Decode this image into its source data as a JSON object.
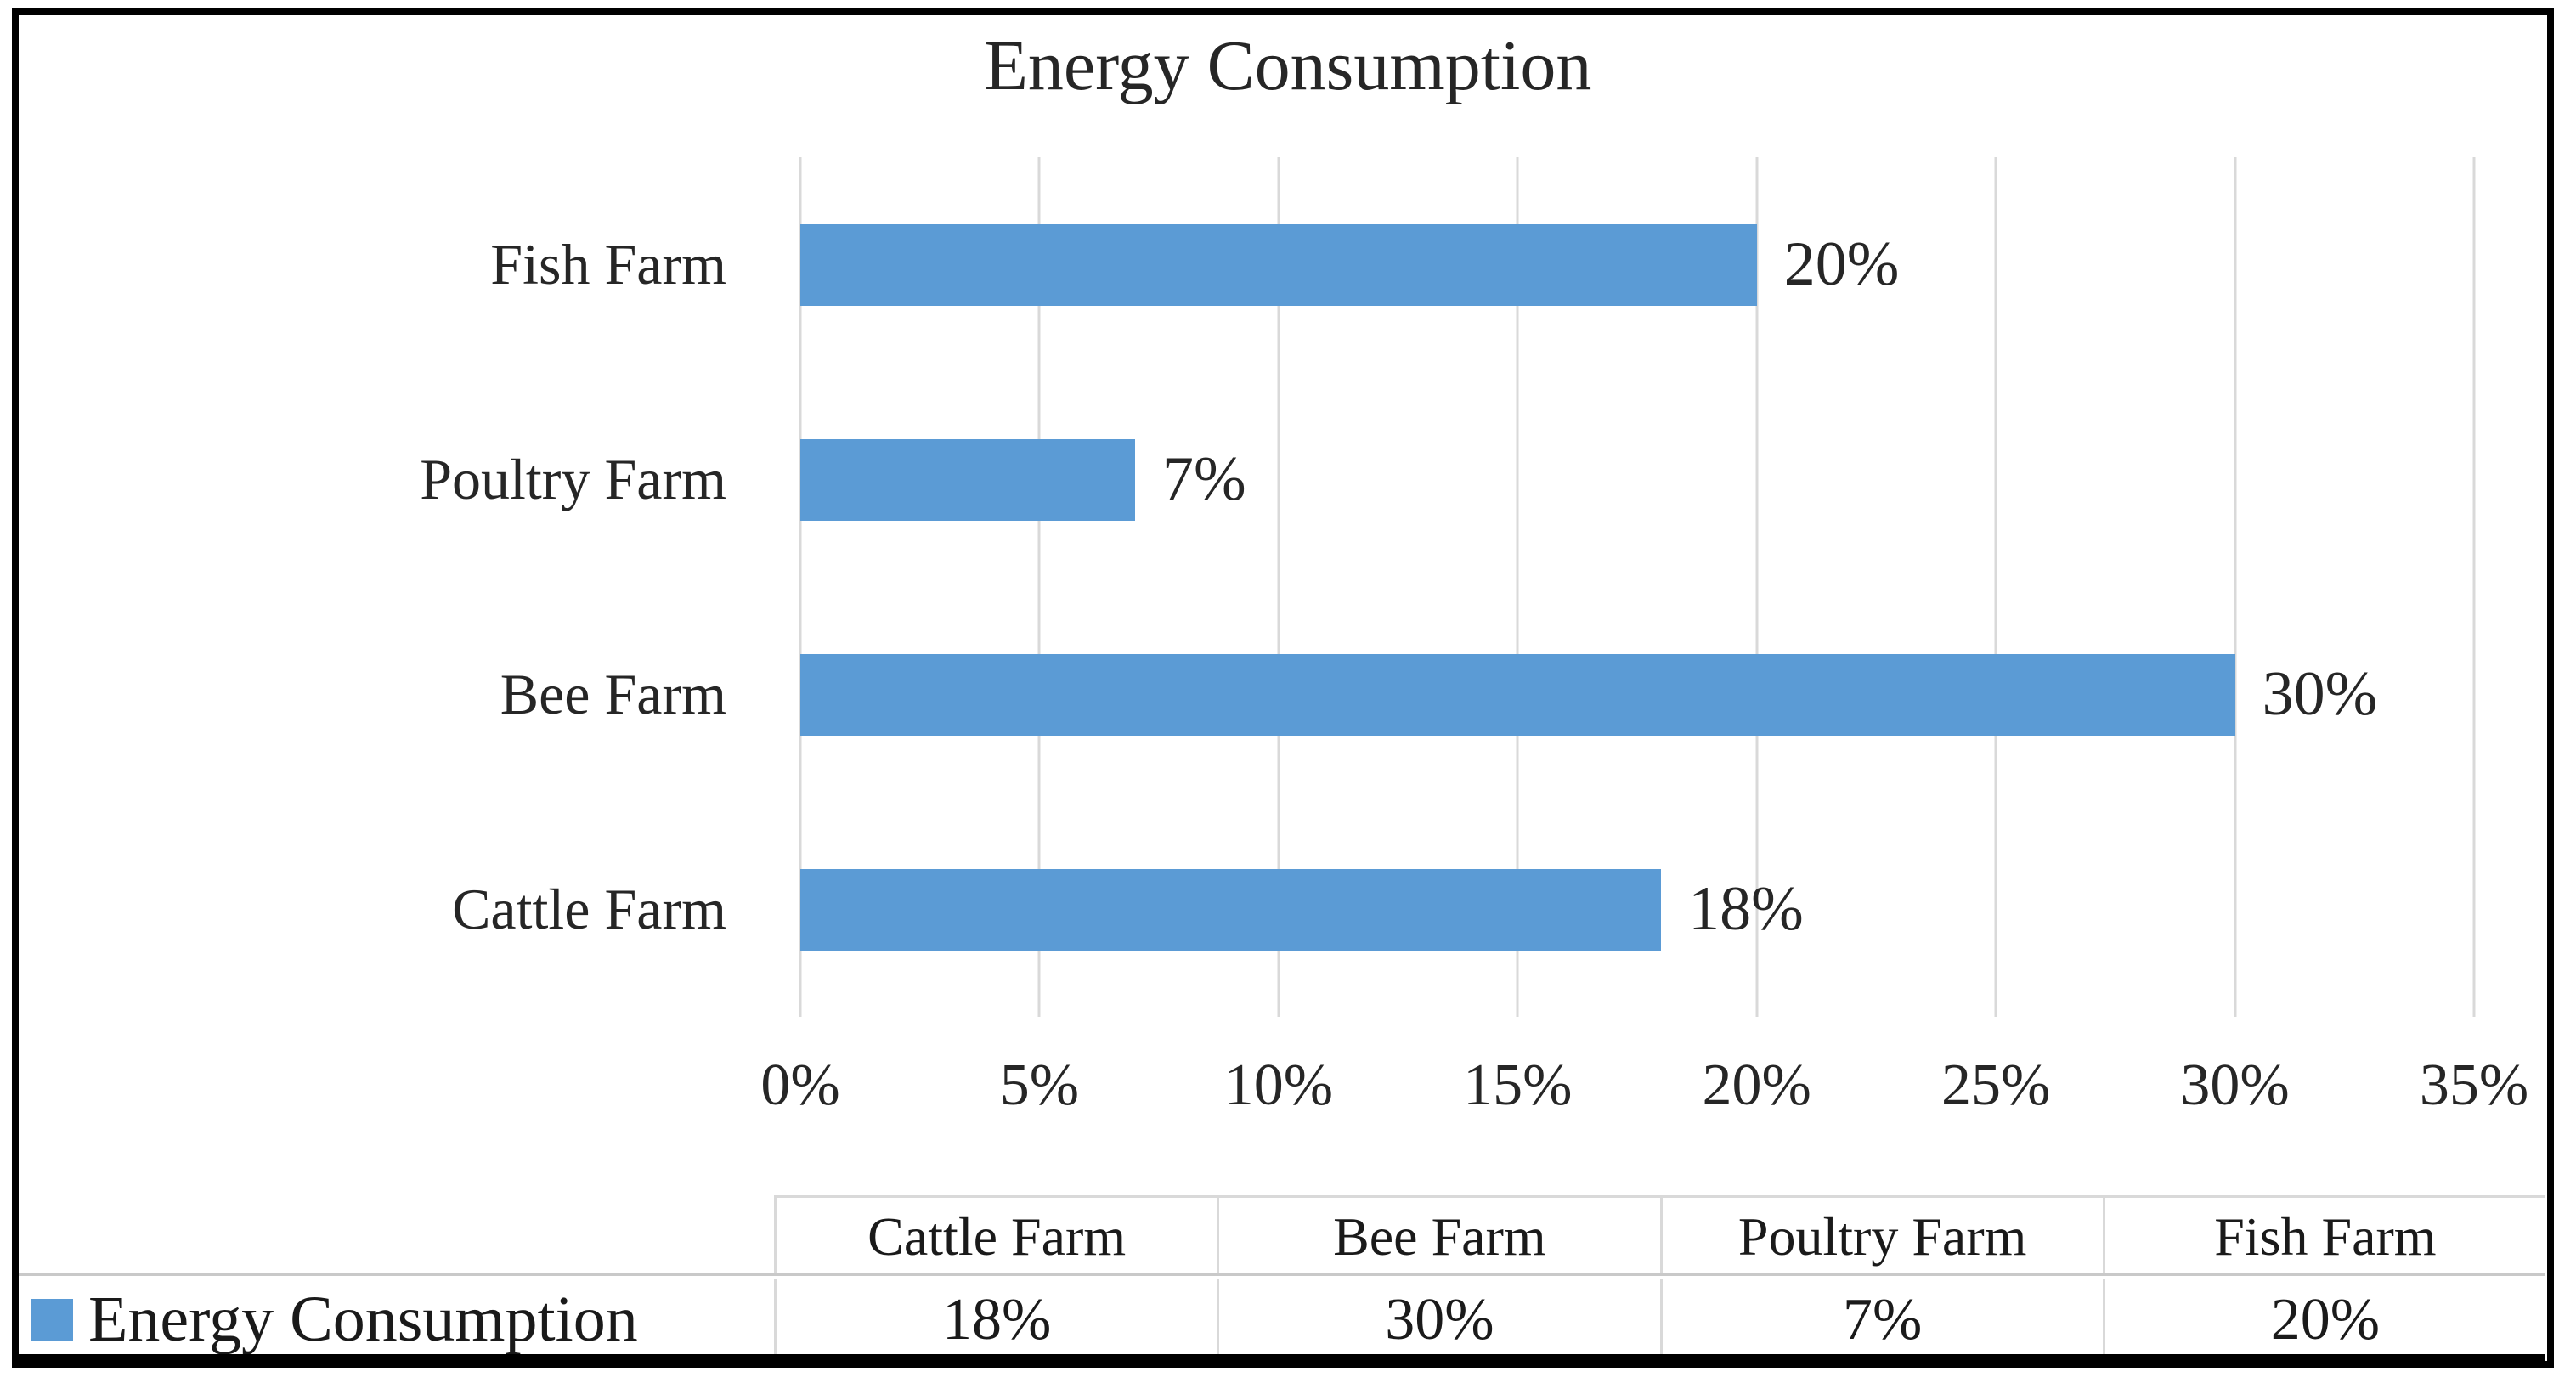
{
  "chart": {
    "title": "Energy Consumption",
    "bar_color": "#5b9bd5",
    "gridline_color": "#d9d9d9",
    "axis": {
      "min": 0,
      "max": 35,
      "step": 5,
      "tick_labels": [
        "0%",
        "5%",
        "10%",
        "15%",
        "20%",
        "25%",
        "30%",
        "35%"
      ]
    },
    "rows": [
      {
        "label": "Fish Farm",
        "value": 20,
        "value_label": "20%"
      },
      {
        "label": "Poultry Farm",
        "value": 7,
        "value_label": "7%"
      },
      {
        "label": "Bee Farm",
        "value": 30,
        "value_label": "30%"
      },
      {
        "label": "Cattle Farm",
        "value": 18,
        "value_label": "18%"
      }
    ]
  },
  "table": {
    "legend": {
      "label": "Energy Consumption",
      "marker_color": "#5b9bd5"
    },
    "columns": [
      "Cattle Farm",
      "Bee Farm",
      "Poultry Farm",
      "Fish Farm"
    ],
    "values": [
      "18%",
      "30%",
      "7%",
      "20%"
    ]
  },
  "chart_data": {
    "type": "bar",
    "orientation": "horizontal",
    "title": "Energy Consumption",
    "categories": [
      "Cattle Farm",
      "Bee Farm",
      "Poultry Farm",
      "Fish Farm"
    ],
    "values": [
      18,
      30,
      7,
      20
    ],
    "data_labels": [
      "18%",
      "30%",
      "7%",
      "20%"
    ],
    "unit": "%",
    "xlabel": "",
    "ylabel": "",
    "xlim": [
      0,
      35
    ],
    "xticks": [
      "0%",
      "5%",
      "10%",
      "15%",
      "20%",
      "25%",
      "30%",
      "35%"
    ],
    "grid": true,
    "legend_entries": [
      "Energy Consumption"
    ],
    "legend_position": "bottom-table",
    "series_color": "#5b9bd5"
  }
}
